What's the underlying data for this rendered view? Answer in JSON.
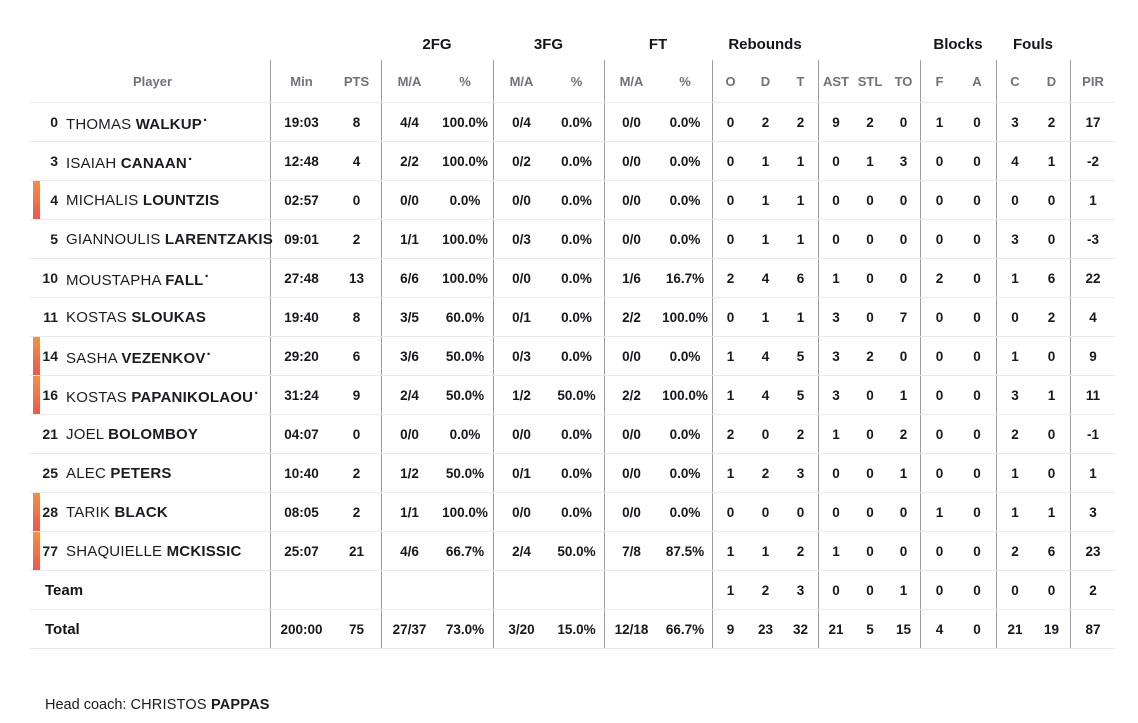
{
  "header": {
    "groups": {
      "fg2": "2FG",
      "fg3": "3FG",
      "ft": "FT",
      "rebounds": "Rebounds",
      "blocks": "Blocks",
      "fouls": "Fouls"
    },
    "columns": {
      "player": "Player",
      "min": "Min",
      "pts": "PTS",
      "ma": "M/A",
      "pct": "%",
      "o": "O",
      "d": "D",
      "t": "T",
      "ast": "AST",
      "stl": "STL",
      "to": "TO",
      "f": "F",
      "a": "A",
      "c": "C",
      "d2": "D",
      "pir": "PIR"
    }
  },
  "players": [
    {
      "number": "0",
      "first": "THOMAS",
      "last": "WALKUP",
      "starter": true,
      "on_court": false,
      "min": "19:03",
      "pts": "8",
      "fg2_ma": "4/4",
      "fg2_pct": "100.0%",
      "fg3_ma": "0/4",
      "fg3_pct": "0.0%",
      "ft_ma": "0/0",
      "ft_pct": "0.0%",
      "reb_o": "0",
      "reb_d": "2",
      "reb_t": "2",
      "ast": "9",
      "stl": "2",
      "to": "0",
      "blk_f": "1",
      "blk_a": "0",
      "foul_c": "3",
      "foul_d": "2",
      "pir": "17"
    },
    {
      "number": "3",
      "first": "ISAIAH",
      "last": "CANAAN",
      "starter": true,
      "on_court": false,
      "min": "12:48",
      "pts": "4",
      "fg2_ma": "2/2",
      "fg2_pct": "100.0%",
      "fg3_ma": "0/2",
      "fg3_pct": "0.0%",
      "ft_ma": "0/0",
      "ft_pct": "0.0%",
      "reb_o": "0",
      "reb_d": "1",
      "reb_t": "1",
      "ast": "0",
      "stl": "1",
      "to": "3",
      "blk_f": "0",
      "blk_a": "0",
      "foul_c": "4",
      "foul_d": "1",
      "pir": "-2"
    },
    {
      "number": "4",
      "first": "MICHALIS",
      "last": "LOUNTZIS",
      "starter": false,
      "on_court": true,
      "min": "02:57",
      "pts": "0",
      "fg2_ma": "0/0",
      "fg2_pct": "0.0%",
      "fg3_ma": "0/0",
      "fg3_pct": "0.0%",
      "ft_ma": "0/0",
      "ft_pct": "0.0%",
      "reb_o": "0",
      "reb_d": "1",
      "reb_t": "1",
      "ast": "0",
      "stl": "0",
      "to": "0",
      "blk_f": "0",
      "blk_a": "0",
      "foul_c": "0",
      "foul_d": "0",
      "pir": "1"
    },
    {
      "number": "5",
      "first": "GIANNOULIS",
      "last": "LARENTZAKIS",
      "starter": false,
      "on_court": false,
      "min": "09:01",
      "pts": "2",
      "fg2_ma": "1/1",
      "fg2_pct": "100.0%",
      "fg3_ma": "0/3",
      "fg3_pct": "0.0%",
      "ft_ma": "0/0",
      "ft_pct": "0.0%",
      "reb_o": "0",
      "reb_d": "1",
      "reb_t": "1",
      "ast": "0",
      "stl": "0",
      "to": "0",
      "blk_f": "0",
      "blk_a": "0",
      "foul_c": "3",
      "foul_d": "0",
      "pir": "-3"
    },
    {
      "number": "10",
      "first": "MOUSTAPHA",
      "last": "FALL",
      "starter": true,
      "on_court": false,
      "min": "27:48",
      "pts": "13",
      "fg2_ma": "6/6",
      "fg2_pct": "100.0%",
      "fg3_ma": "0/0",
      "fg3_pct": "0.0%",
      "ft_ma": "1/6",
      "ft_pct": "16.7%",
      "reb_o": "2",
      "reb_d": "4",
      "reb_t": "6",
      "ast": "1",
      "stl": "0",
      "to": "0",
      "blk_f": "2",
      "blk_a": "0",
      "foul_c": "1",
      "foul_d": "6",
      "pir": "22"
    },
    {
      "number": "11",
      "first": "KOSTAS",
      "last": "SLOUKAS",
      "starter": false,
      "on_court": false,
      "min": "19:40",
      "pts": "8",
      "fg2_ma": "3/5",
      "fg2_pct": "60.0%",
      "fg3_ma": "0/1",
      "fg3_pct": "0.0%",
      "ft_ma": "2/2",
      "ft_pct": "100.0%",
      "reb_o": "0",
      "reb_d": "1",
      "reb_t": "1",
      "ast": "3",
      "stl": "0",
      "to": "7",
      "blk_f": "0",
      "blk_a": "0",
      "foul_c": "0",
      "foul_d": "2",
      "pir": "4"
    },
    {
      "number": "14",
      "first": "SASHA",
      "last": "VEZENKOV",
      "starter": true,
      "on_court": true,
      "min": "29:20",
      "pts": "6",
      "fg2_ma": "3/6",
      "fg2_pct": "50.0%",
      "fg3_ma": "0/3",
      "fg3_pct": "0.0%",
      "ft_ma": "0/0",
      "ft_pct": "0.0%",
      "reb_o": "1",
      "reb_d": "4",
      "reb_t": "5",
      "ast": "3",
      "stl": "2",
      "to": "0",
      "blk_f": "0",
      "blk_a": "0",
      "foul_c": "1",
      "foul_d": "0",
      "pir": "9"
    },
    {
      "number": "16",
      "first": "KOSTAS",
      "last": "PAPANIKOLAOU",
      "starter": true,
      "on_court": true,
      "min": "31:24",
      "pts": "9",
      "fg2_ma": "2/4",
      "fg2_pct": "50.0%",
      "fg3_ma": "1/2",
      "fg3_pct": "50.0%",
      "ft_ma": "2/2",
      "ft_pct": "100.0%",
      "reb_o": "1",
      "reb_d": "4",
      "reb_t": "5",
      "ast": "3",
      "stl": "0",
      "to": "1",
      "blk_f": "0",
      "blk_a": "0",
      "foul_c": "3",
      "foul_d": "1",
      "pir": "11"
    },
    {
      "number": "21",
      "first": "JOEL",
      "last": "BOLOMBOY",
      "starter": false,
      "on_court": false,
      "min": "04:07",
      "pts": "0",
      "fg2_ma": "0/0",
      "fg2_pct": "0.0%",
      "fg3_ma": "0/0",
      "fg3_pct": "0.0%",
      "ft_ma": "0/0",
      "ft_pct": "0.0%",
      "reb_o": "2",
      "reb_d": "0",
      "reb_t": "2",
      "ast": "1",
      "stl": "0",
      "to": "2",
      "blk_f": "0",
      "blk_a": "0",
      "foul_c": "2",
      "foul_d": "0",
      "pir": "-1"
    },
    {
      "number": "25",
      "first": "ALEC",
      "last": "PETERS",
      "starter": false,
      "on_court": false,
      "min": "10:40",
      "pts": "2",
      "fg2_ma": "1/2",
      "fg2_pct": "50.0%",
      "fg3_ma": "0/1",
      "fg3_pct": "0.0%",
      "ft_ma": "0/0",
      "ft_pct": "0.0%",
      "reb_o": "1",
      "reb_d": "2",
      "reb_t": "3",
      "ast": "0",
      "stl": "0",
      "to": "1",
      "blk_f": "0",
      "blk_a": "0",
      "foul_c": "1",
      "foul_d": "0",
      "pir": "1"
    },
    {
      "number": "28",
      "first": "TARIK",
      "last": "BLACK",
      "starter": false,
      "on_court": true,
      "min": "08:05",
      "pts": "2",
      "fg2_ma": "1/1",
      "fg2_pct": "100.0%",
      "fg3_ma": "0/0",
      "fg3_pct": "0.0%",
      "ft_ma": "0/0",
      "ft_pct": "0.0%",
      "reb_o": "0",
      "reb_d": "0",
      "reb_t": "0",
      "ast": "0",
      "stl": "0",
      "to": "0",
      "blk_f": "1",
      "blk_a": "0",
      "foul_c": "1",
      "foul_d": "1",
      "pir": "3"
    },
    {
      "number": "77",
      "first": "SHAQUIELLE",
      "last": "MCKISSIC",
      "starter": false,
      "on_court": true,
      "min": "25:07",
      "pts": "21",
      "fg2_ma": "4/6",
      "fg2_pct": "66.7%",
      "fg3_ma": "2/4",
      "fg3_pct": "50.0%",
      "ft_ma": "7/8",
      "ft_pct": "87.5%",
      "reb_o": "1",
      "reb_d": "1",
      "reb_t": "2",
      "ast": "1",
      "stl": "0",
      "to": "0",
      "blk_f": "0",
      "blk_a": "0",
      "foul_c": "2",
      "foul_d": "6",
      "pir": "23"
    }
  ],
  "team_row": {
    "label": "Team",
    "min": "",
    "pts": "",
    "fg2_ma": "",
    "fg2_pct": "",
    "fg3_ma": "",
    "fg3_pct": "",
    "ft_ma": "",
    "ft_pct": "",
    "reb_o": "1",
    "reb_d": "2",
    "reb_t": "3",
    "ast": "0",
    "stl": "0",
    "to": "1",
    "blk_f": "0",
    "blk_a": "0",
    "foul_c": "0",
    "foul_d": "0",
    "pir": "2"
  },
  "total_row": {
    "label": "Total",
    "min": "200:00",
    "pts": "75",
    "fg2_ma": "27/37",
    "fg2_pct": "73.0%",
    "fg3_ma": "3/20",
    "fg3_pct": "15.0%",
    "ft_ma": "12/18",
    "ft_pct": "66.7%",
    "reb_o": "9",
    "reb_d": "23",
    "reb_t": "32",
    "ast": "21",
    "stl": "5",
    "to": "15",
    "blk_f": "4",
    "blk_a": "0",
    "foul_c": "21",
    "foul_d": "19",
    "pir": "87"
  },
  "footer": {
    "head_coach_label": "Head coach:",
    "coach_first": "CHRISTOS",
    "coach_last": "PAPPAS"
  },
  "legend": {
    "starter_marker": "·"
  },
  "colors": {
    "on_court_top": "#f5923e",
    "on_court_bottom": "#ee564e",
    "vertical_line": "#9b9ba3",
    "horizontal_line": "#e9e9ec",
    "text_dark": "#17171f",
    "text_gray": "#71717a"
  }
}
